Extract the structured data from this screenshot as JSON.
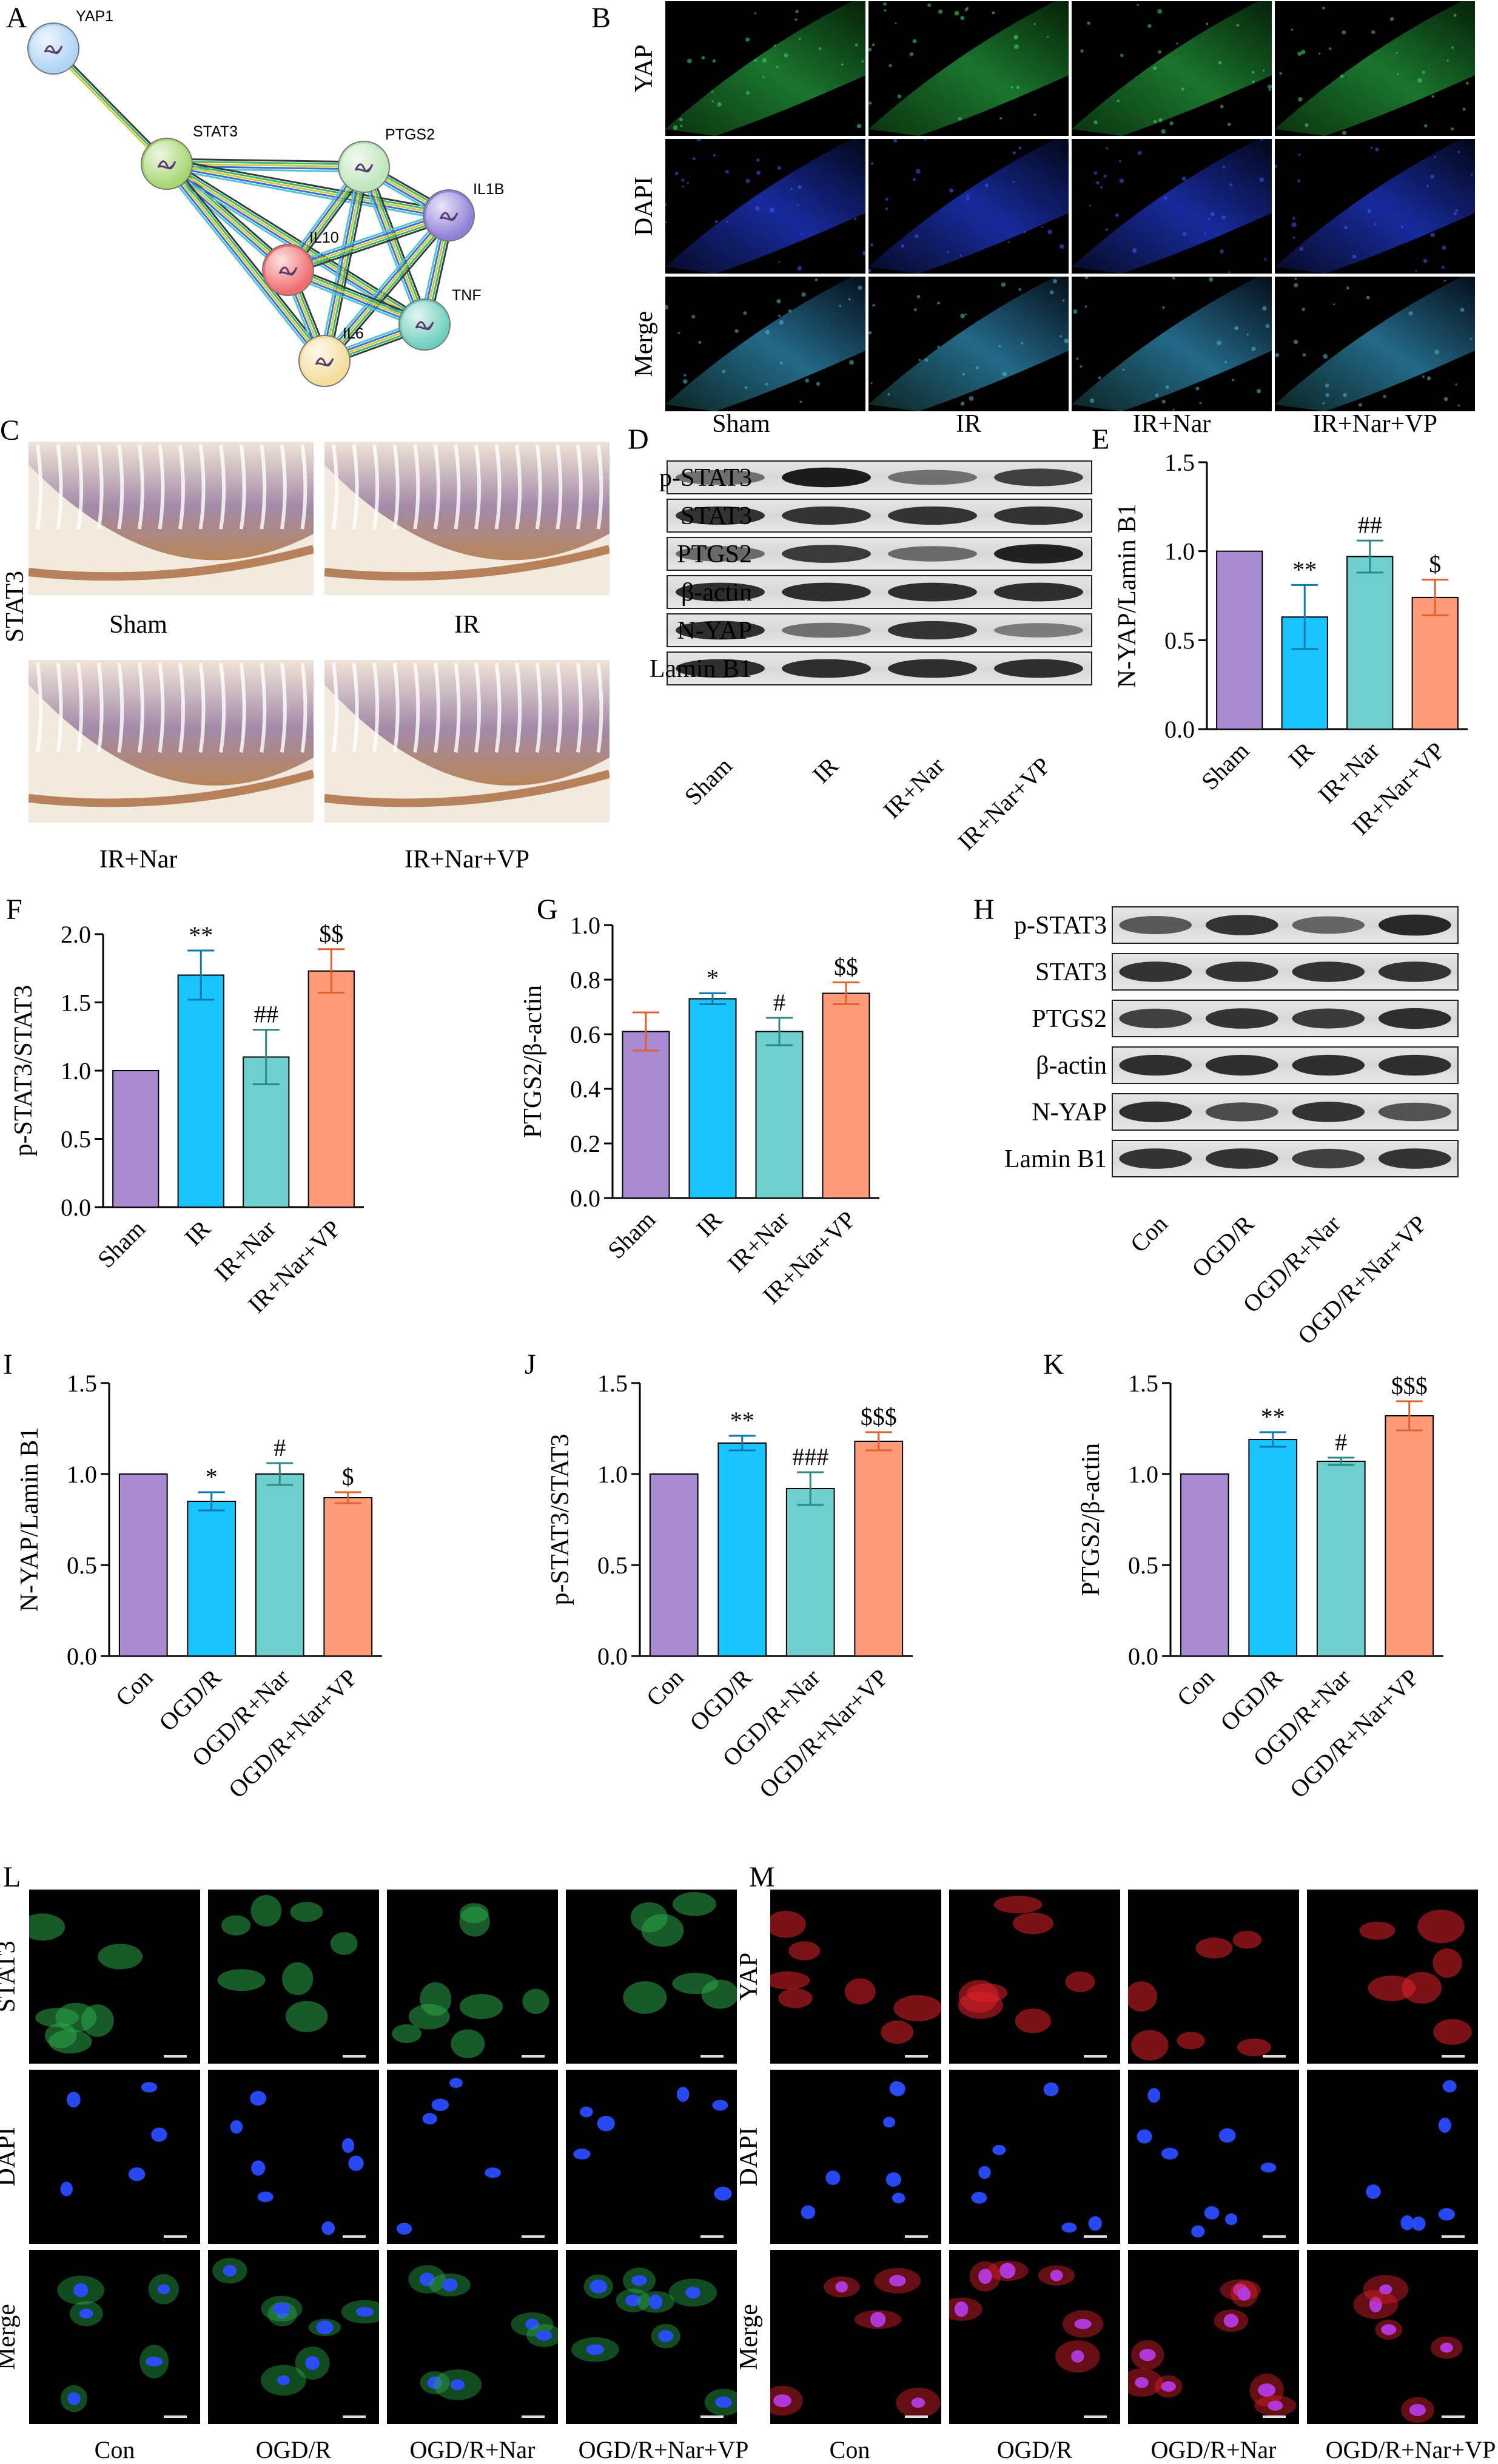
{
  "panel_letters": [
    "A",
    "B",
    "C",
    "D",
    "E",
    "F",
    "G",
    "H",
    "I",
    "J",
    "K",
    "L",
    "M"
  ],
  "colors": {
    "purple": "#A88BD1",
    "blue": "#1AC4FF",
    "teal": "#6FCFCF",
    "orange": "#FF9A78",
    "network_edges": [
      "#3a3a3a",
      "#3fb96a",
      "#d6c83a",
      "#3b6fd3",
      "#54c3d3"
    ],
    "green_fluor": "#2ba64a",
    "blue_fluor": "#1f3fd8",
    "red_fluor": "#e0202a"
  },
  "network": {
    "nodes": [
      {
        "name": "YAP1",
        "label": "YAP1",
        "color": "#aed4f4"
      },
      {
        "name": "STAT3",
        "label": "STAT3",
        "color": "#a8d672"
      },
      {
        "name": "PTGS2",
        "label": "PTGS2",
        "color": "#bde6bb"
      },
      {
        "name": "IL1B",
        "label": "IL1B",
        "color": "#8f80d8"
      },
      {
        "name": "IL10",
        "label": "IL10",
        "color": "#ef6d6d"
      },
      {
        "name": "TNF",
        "label": "TNF",
        "color": "#6fcfbf"
      },
      {
        "name": "IL6",
        "label": "IL6",
        "color": "#f4dc9a"
      }
    ]
  },
  "panelB": {
    "rows": [
      "YAP",
      "DAPI",
      "Merge"
    ],
    "cols": [
      "Sham",
      "IR",
      "IR+Nar",
      "IR+Nar+VP"
    ]
  },
  "panelC": {
    "row_label": "STAT3",
    "labels": [
      "Sham",
      "IR",
      "IR+Nar",
      "IR+Nar+VP"
    ]
  },
  "panelD": {
    "bands": [
      "p-STAT3",
      "STAT3",
      "PTGS2",
      "β-actin",
      "N-YAP",
      "Lamin B1"
    ],
    "lanes": [
      "Sham",
      "IR",
      "IR+Nar",
      "IR+Nar+VP"
    ]
  },
  "panelH": {
    "bands": [
      "p-STAT3",
      "STAT3",
      "PTGS2",
      "β-actin",
      "N-YAP",
      "Lamin B1"
    ],
    "lanes": [
      "Con",
      "OGD/R",
      "OGD/R+Nar",
      "OGD/R+Nar+VP"
    ]
  },
  "panelL": {
    "rows": [
      "STAT3",
      "DAPI",
      "Merge"
    ],
    "cols": [
      "Con",
      "OGD/R",
      "OGD/R+Nar",
      "OGD/R+Nar+VP"
    ]
  },
  "panelM": {
    "rows": [
      "YAP",
      "DAPI",
      "Merge"
    ],
    "cols": [
      "Con",
      "OGD/R",
      "OGD/R+Nar",
      "OGD/R+Nar+VP"
    ]
  },
  "chart_data": [
    {
      "panel": "E",
      "type": "bar",
      "categories": [
        "Sham",
        "IR",
        "IR+Nar",
        "IR+Nar+VP"
      ],
      "values": [
        1.0,
        0.63,
        0.97,
        0.74
      ],
      "errors": [
        0,
        0.18,
        0.09,
        0.1
      ],
      "annotations": [
        "",
        "**",
        "##",
        "$"
      ],
      "ylabel": "N-YAP/Lamin B1",
      "ylim": [
        0,
        1.5
      ],
      "yticks": [
        "0.0",
        "0.5",
        "1.0",
        "1.5"
      ],
      "bar_colors": [
        "#A88BD1",
        "#1AC4FF",
        "#6FCFCF",
        "#FF9A78"
      ]
    },
    {
      "panel": "F",
      "type": "bar",
      "categories": [
        "Sham",
        "IR",
        "IR+Nar",
        "IR+Nar+VP"
      ],
      "values": [
        1.0,
        1.7,
        1.1,
        1.73
      ],
      "errors": [
        0,
        0.18,
        0.2,
        0.16
      ],
      "annotations": [
        "",
        "**",
        "##",
        "$$"
      ],
      "ylabel": "p-STAT3/STAT3",
      "ylim": [
        0,
        2.0
      ],
      "yticks": [
        "0.0",
        "0.5",
        "1.0",
        "1.5",
        "2.0"
      ],
      "bar_colors": [
        "#A88BD1",
        "#1AC4FF",
        "#6FCFCF",
        "#FF9A78"
      ]
    },
    {
      "panel": "G",
      "type": "bar",
      "categories": [
        "Sham",
        "IR",
        "IR+Nar",
        "IR+Nar+VP"
      ],
      "values": [
        0.61,
        0.73,
        0.61,
        0.75
      ],
      "errors": [
        0.07,
        0.02,
        0.05,
        0.04
      ],
      "annotations": [
        "",
        "*",
        "#",
        "$$"
      ],
      "ylabel": "PTGS2/β-actin",
      "ylim": [
        0,
        1.0
      ],
      "yticks": [
        "0.0",
        "0.2",
        "0.4",
        "0.6",
        "0.8",
        "1.0"
      ],
      "bar_colors": [
        "#A88BD1",
        "#1AC4FF",
        "#6FCFCF",
        "#FF9A78"
      ]
    },
    {
      "panel": "I",
      "type": "bar",
      "categories": [
        "Con",
        "OGD/R",
        "OGD/R+Nar",
        "OGD/R+Nar+VP"
      ],
      "values": [
        1.0,
        0.85,
        1.0,
        0.87
      ],
      "errors": [
        0,
        0.05,
        0.06,
        0.03
      ],
      "annotations": [
        "",
        "*",
        "#",
        "$"
      ],
      "ylabel": "N-YAP/Lamin B1",
      "ylim": [
        0,
        1.5
      ],
      "yticks": [
        "0.0",
        "0.5",
        "1.0",
        "1.5"
      ],
      "bar_colors": [
        "#A88BD1",
        "#1AC4FF",
        "#6FCFCF",
        "#FF9A78"
      ]
    },
    {
      "panel": "J",
      "type": "bar",
      "categories": [
        "Con",
        "OGD/R",
        "OGD/R+Nar",
        "OGD/R+Nar+VP"
      ],
      "values": [
        1.0,
        1.17,
        0.92,
        1.18
      ],
      "errors": [
        0,
        0.04,
        0.09,
        0.05
      ],
      "annotations": [
        "",
        "**",
        "###",
        "$$$"
      ],
      "ylabel": "p-STAT3/STAT3",
      "ylim": [
        0,
        1.5
      ],
      "yticks": [
        "0.0",
        "0.5",
        "1.0",
        "1.5"
      ],
      "bar_colors": [
        "#A88BD1",
        "#1AC4FF",
        "#6FCFCF",
        "#FF9A78"
      ]
    },
    {
      "panel": "K",
      "type": "bar",
      "categories": [
        "Con",
        "OGD/R",
        "OGD/R+Nar",
        "OGD/R+Nar+VP"
      ],
      "values": [
        1.0,
        1.19,
        1.07,
        1.32
      ],
      "errors": [
        0,
        0.04,
        0.02,
        0.08
      ],
      "annotations": [
        "",
        "**",
        "#",
        "$$$"
      ],
      "ylabel": "PTGS2/β-actin",
      "ylim": [
        0,
        1.5
      ],
      "yticks": [
        "0.0",
        "0.5",
        "1.0",
        "1.5"
      ],
      "bar_colors": [
        "#A88BD1",
        "#1AC4FF",
        "#6FCFCF",
        "#FF9A78"
      ]
    }
  ]
}
